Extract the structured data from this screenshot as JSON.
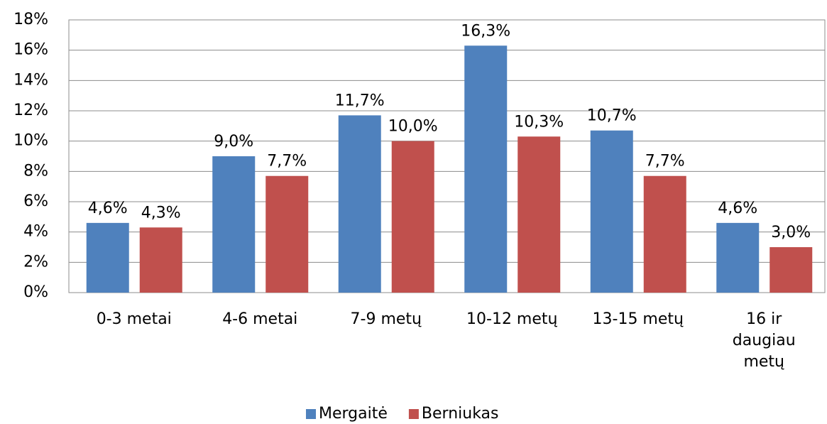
{
  "chart_data": {
    "type": "bar",
    "categories": [
      "0-3 metai",
      "4-6 metai",
      "7-9 metų",
      "10-12 metų",
      "13-15 metų",
      "16 ir daugiau metų"
    ],
    "series": [
      {
        "name": "Mergaitė",
        "color": "#4f81bd",
        "values": [
          4.6,
          9.0,
          11.7,
          16.3,
          10.7,
          4.6
        ],
        "value_labels": [
          "4,6%",
          "9,0%",
          "11,7%",
          "16,3%",
          "10,7%",
          "4,6%"
        ]
      },
      {
        "name": "Berniukas",
        "color": "#c0504d",
        "values": [
          4.3,
          7.7,
          10.0,
          10.3,
          7.7,
          3.0
        ],
        "value_labels": [
          "4,3%",
          "7,7%",
          "10,0%",
          "10,3%",
          "7,7%",
          "3,0%"
        ]
      }
    ],
    "ylim": [
      0,
      18
    ],
    "yticks": [
      {
        "value": 0,
        "label": "0%"
      },
      {
        "value": 2,
        "label": "2%"
      },
      {
        "value": 4,
        "label": "4%"
      },
      {
        "value": 6,
        "label": "6%"
      },
      {
        "value": 8,
        "label": "8%"
      },
      {
        "value": 10,
        "label": "10%"
      },
      {
        "value": 12,
        "label": "12%"
      },
      {
        "value": 14,
        "label": "14%"
      },
      {
        "value": 16,
        "label": "16%"
      },
      {
        "value": 18,
        "label": "18%"
      }
    ],
    "grid": true,
    "legend": "bottom"
  }
}
